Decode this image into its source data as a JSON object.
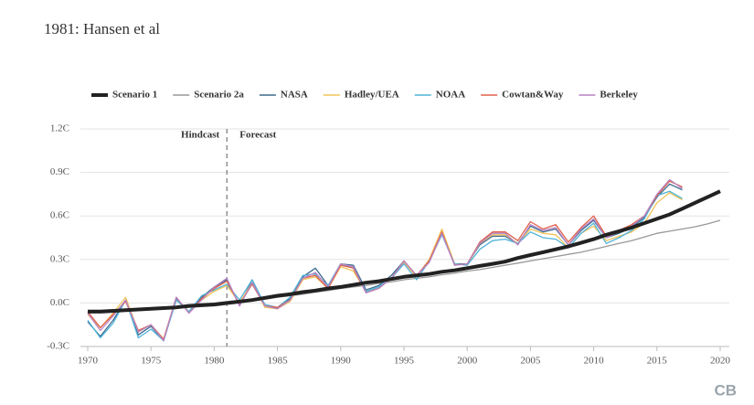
{
  "chart_data": {
    "type": "line",
    "title": "1981: Hansen et al",
    "annotations": [
      {
        "text": "Hindcast"
      },
      {
        "text": "Forecast"
      }
    ],
    "divider": 1981,
    "logo": "CB",
    "legend": "top",
    "grid": true,
    "x": [
      1970,
      1971,
      1972,
      1973,
      1974,
      1975,
      1976,
      1977,
      1978,
      1979,
      1980,
      1981,
      1982,
      1983,
      1984,
      1985,
      1986,
      1987,
      1988,
      1989,
      1990,
      1991,
      1992,
      1993,
      1994,
      1995,
      1996,
      1997,
      1998,
      1999,
      2000,
      2001,
      2002,
      2003,
      2004,
      2005,
      2006,
      2007,
      2008,
      2009,
      2010,
      2011,
      2012,
      2013,
      2014,
      2015,
      2016,
      2017,
      2018,
      2019,
      2020
    ],
    "xlim": [
      1970,
      2020
    ],
    "xticks": [
      1970,
      1975,
      1980,
      1985,
      1990,
      1995,
      2000,
      2005,
      2010,
      2015,
      2020
    ],
    "ylim": [
      -0.3,
      1.2
    ],
    "yticks": [
      {
        "value": -0.3,
        "label": "-0.3C"
      },
      {
        "value": 0,
        "label": "0.0C"
      },
      {
        "value": 0.3,
        "label": "0.3C"
      },
      {
        "value": 0.6,
        "label": "0.6C"
      },
      {
        "value": 0.9,
        "label": "0.9C"
      },
      {
        "value": 1.2,
        "label": "1.2C"
      }
    ],
    "series": [
      {
        "name": "Scenario 1",
        "color": "#222222",
        "width": 4,
        "values": [
          -0.06,
          -0.06,
          -0.055,
          -0.05,
          -0.045,
          -0.04,
          -0.035,
          -0.03,
          -0.02,
          -0.015,
          -0.01,
          0.0,
          0.01,
          0.02,
          0.035,
          0.05,
          0.06,
          0.075,
          0.085,
          0.1,
          0.11,
          0.125,
          0.14,
          0.15,
          0.165,
          0.18,
          0.19,
          0.2,
          0.215,
          0.225,
          0.24,
          0.255,
          0.27,
          0.285,
          0.31,
          0.33,
          0.35,
          0.37,
          0.39,
          0.415,
          0.44,
          0.47,
          0.495,
          0.52,
          0.55,
          0.58,
          0.61,
          0.65,
          0.69,
          0.73,
          0.77
        ]
      },
      {
        "name": "Scenario 2a",
        "color": "#999999",
        "width": 1.3,
        "values": [
          -0.05,
          -0.05,
          -0.045,
          -0.045,
          -0.04,
          -0.04,
          -0.035,
          -0.03,
          -0.03,
          -0.025,
          -0.02,
          -0.01,
          0.0,
          0.015,
          0.025,
          0.04,
          0.05,
          0.06,
          0.075,
          0.085,
          0.1,
          0.11,
          0.12,
          0.135,
          0.145,
          0.16,
          0.17,
          0.18,
          0.195,
          0.205,
          0.22,
          0.23,
          0.245,
          0.26,
          0.275,
          0.29,
          0.305,
          0.32,
          0.335,
          0.35,
          0.37,
          0.39,
          0.41,
          0.43,
          0.455,
          0.48,
          0.495,
          0.51,
          0.525,
          0.545,
          0.57
        ]
      },
      {
        "name": "NASA",
        "color": "#3d6a8c",
        "width": 1.3,
        "values": [
          -0.13,
          -0.23,
          -0.12,
          0.02,
          -0.22,
          -0.16,
          -0.26,
          0.03,
          -0.06,
          0.04,
          0.11,
          0.16,
          -0.02,
          0.16,
          -0.02,
          -0.04,
          0.03,
          0.18,
          0.24,
          0.12,
          0.27,
          0.26,
          0.09,
          0.12,
          0.19,
          0.29,
          0.18,
          0.3,
          0.48,
          0.27,
          0.27,
          0.4,
          0.46,
          0.46,
          0.41,
          0.53,
          0.49,
          0.51,
          0.4,
          0.5,
          0.57,
          0.45,
          0.48,
          0.52,
          0.59,
          0.73,
          0.82,
          0.78,
          null,
          null,
          null
        ]
      },
      {
        "name": "Hadley/UEA",
        "color": "#f2c45a",
        "width": 1.3,
        "values": [
          -0.08,
          -0.17,
          -0.07,
          0.04,
          -0.2,
          -0.15,
          -0.25,
          0.02,
          -0.06,
          0.02,
          0.08,
          0.12,
          0.0,
          0.14,
          -0.03,
          -0.04,
          0.01,
          0.16,
          0.18,
          0.1,
          0.25,
          0.22,
          0.08,
          0.1,
          0.17,
          0.28,
          0.18,
          0.3,
          0.51,
          0.27,
          0.26,
          0.41,
          0.47,
          0.47,
          0.41,
          0.51,
          0.48,
          0.47,
          0.38,
          0.48,
          0.53,
          0.43,
          0.46,
          0.49,
          0.55,
          0.69,
          0.76,
          0.71,
          null,
          null,
          null
        ]
      },
      {
        "name": "NOAA",
        "color": "#4fb3d9",
        "width": 1.3,
        "values": [
          -0.12,
          -0.24,
          -0.14,
          0.02,
          -0.24,
          -0.18,
          -0.26,
          0.02,
          -0.06,
          0.05,
          0.09,
          0.13,
          0.02,
          0.16,
          -0.01,
          -0.03,
          0.04,
          0.19,
          0.2,
          0.12,
          0.27,
          0.24,
          0.08,
          0.11,
          0.17,
          0.27,
          0.16,
          0.29,
          0.47,
          0.27,
          0.26,
          0.37,
          0.43,
          0.44,
          0.41,
          0.49,
          0.45,
          0.44,
          0.38,
          0.48,
          0.55,
          0.41,
          0.45,
          0.5,
          0.58,
          0.74,
          0.77,
          0.72,
          null,
          null,
          null
        ]
      },
      {
        "name": "Cowtan&Way",
        "color": "#e0604a",
        "width": 1.3,
        "values": [
          -0.06,
          -0.17,
          -0.08,
          0.01,
          -0.19,
          -0.15,
          -0.25,
          0.04,
          -0.07,
          0.03,
          0.1,
          0.15,
          -0.01,
          0.13,
          -0.02,
          -0.03,
          0.02,
          0.17,
          0.19,
          0.1,
          0.26,
          0.24,
          0.07,
          0.1,
          0.17,
          0.29,
          0.19,
          0.29,
          0.49,
          0.26,
          0.27,
          0.42,
          0.49,
          0.49,
          0.43,
          0.56,
          0.51,
          0.54,
          0.42,
          0.52,
          0.6,
          0.46,
          0.5,
          0.54,
          0.6,
          0.74,
          0.84,
          0.8,
          null,
          null,
          null
        ]
      },
      {
        "name": "Berkeley",
        "color": "#b784c4",
        "width": 1.3,
        "values": [
          -0.07,
          -0.19,
          -0.09,
          0.02,
          -0.2,
          -0.15,
          -0.26,
          0.04,
          -0.07,
          0.02,
          0.11,
          0.17,
          -0.02,
          0.14,
          -0.02,
          -0.04,
          0.02,
          0.17,
          0.21,
          0.11,
          0.27,
          0.25,
          0.07,
          0.1,
          0.17,
          0.29,
          0.19,
          0.28,
          0.48,
          0.26,
          0.27,
          0.41,
          0.48,
          0.48,
          0.4,
          0.54,
          0.5,
          0.52,
          0.4,
          0.51,
          0.58,
          0.45,
          0.49,
          0.53,
          0.6,
          0.75,
          0.85,
          0.79,
          null,
          null,
          null
        ]
      }
    ]
  }
}
